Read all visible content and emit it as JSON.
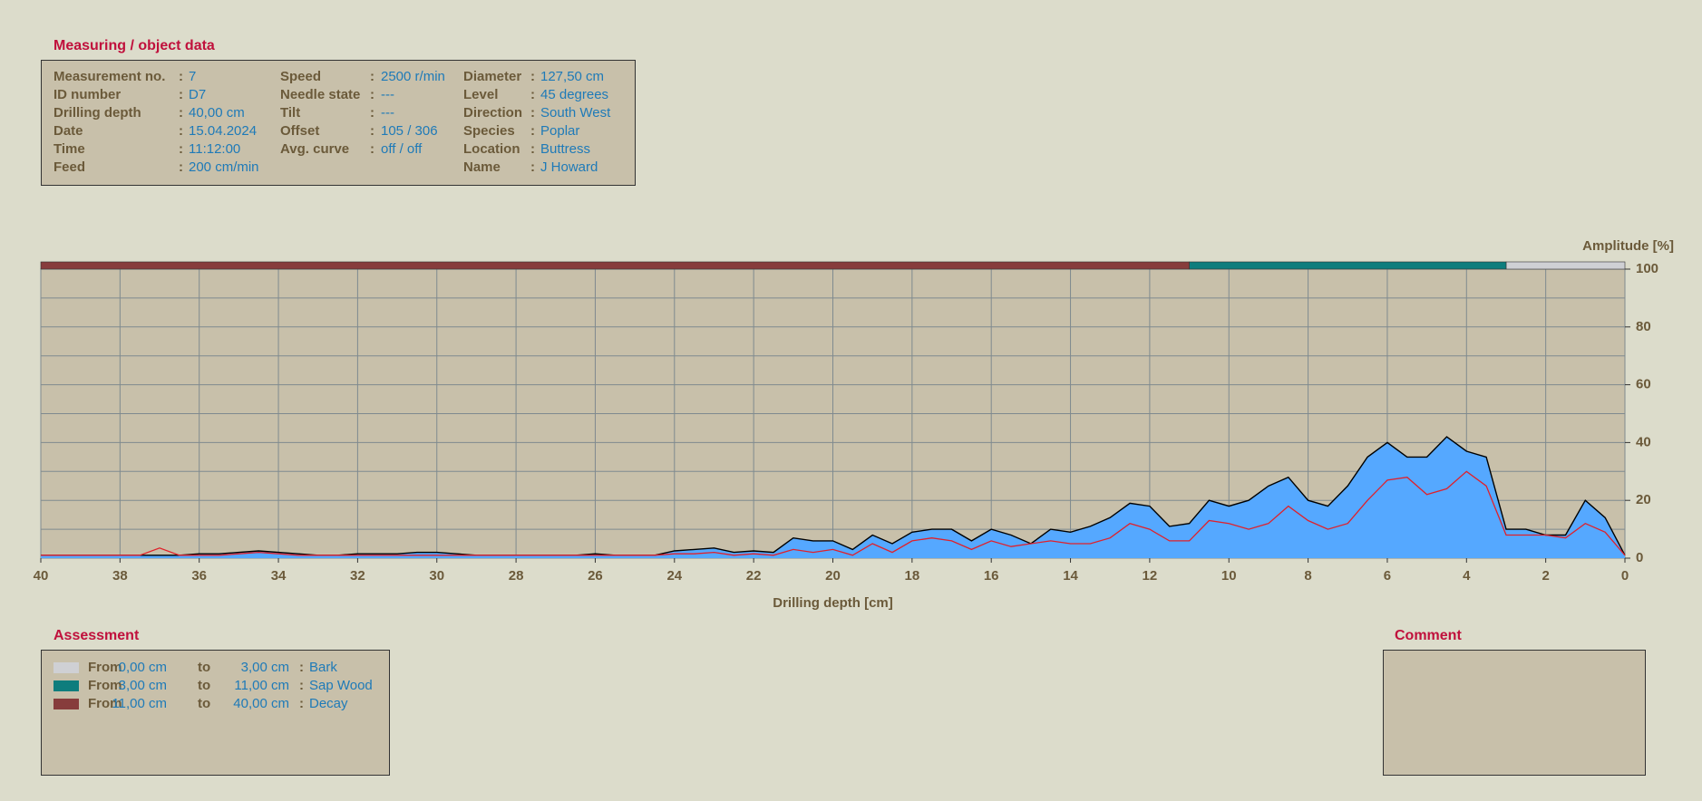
{
  "measuring": {
    "title": "Measuring / object data",
    "separator": ":",
    "columns": [
      [
        {
          "label": "Measurement no.",
          "value": "7"
        },
        {
          "label": "ID number",
          "value": "D7"
        },
        {
          "label": "Drilling depth",
          "value": "40,00 cm"
        },
        {
          "label": "Date",
          "value": "15.04.2024"
        },
        {
          "label": "Time",
          "value": "11:12:00"
        },
        {
          "label": "Feed",
          "value": "200 cm/min"
        }
      ],
      [
        {
          "label": "Speed",
          "value": "2500 r/min"
        },
        {
          "label": "Needle state",
          "value": "---"
        },
        {
          "label": "Tilt",
          "value": "---"
        },
        {
          "label": "Offset",
          "value": "105 / 306"
        },
        {
          "label": "Avg. curve",
          "value": "off / off"
        }
      ],
      [
        {
          "label": "Diameter",
          "value": "127,50 cm"
        },
        {
          "label": "Level",
          "value": "45 degrees"
        },
        {
          "label": "Direction",
          "value": "South West"
        },
        {
          "label": "Species",
          "value": "Poplar"
        },
        {
          "label": "Location",
          "value": "Buttress"
        },
        {
          "label": "Name",
          "value": "J Howard"
        }
      ]
    ]
  },
  "chart_data": {
    "type": "area",
    "ylabel": "Amplitude [%]",
    "xlabel": "Drilling depth [cm]",
    "xlim": [
      40,
      0
    ],
    "xticks": [
      40,
      38,
      36,
      34,
      32,
      30,
      28,
      26,
      24,
      22,
      20,
      18,
      16,
      14,
      12,
      10,
      8,
      6,
      4,
      2,
      0
    ],
    "ylim": [
      0,
      100
    ],
    "yticks": [
      0,
      20,
      40,
      60,
      80,
      100
    ],
    "ygrid": [
      0,
      10,
      20,
      30,
      40,
      50,
      60,
      70,
      80,
      90,
      100
    ],
    "grid": true,
    "x": [
      40,
      39.5,
      39,
      38.5,
      38,
      37.5,
      37,
      36.5,
      36,
      35.5,
      35,
      34.5,
      34,
      33.5,
      33,
      32.5,
      32,
      31.5,
      31,
      30.5,
      30,
      29.5,
      29,
      28.5,
      28,
      27.5,
      27,
      26.5,
      26,
      25.5,
      25,
      24.5,
      24,
      23.5,
      23,
      22.5,
      22,
      21.5,
      21,
      20.5,
      20,
      19.5,
      19,
      18.5,
      18,
      17.5,
      17,
      16.5,
      16,
      15.5,
      15,
      14.5,
      14,
      13.5,
      13,
      12.5,
      12,
      11.5,
      11,
      10.5,
      10,
      9.5,
      9,
      8.5,
      8,
      7.5,
      7,
      6.5,
      6,
      5.5,
      5,
      4.5,
      4,
      3.5,
      3,
      2.5,
      2,
      1.5,
      1,
      0.5,
      0
    ],
    "series": [
      {
        "color": "#55a8ff",
        "line": "#000000",
        "fill": true,
        "values": [
          1,
          1,
          1,
          1,
          1,
          1,
          1,
          1,
          1.5,
          1.5,
          2,
          2.5,
          2,
          1.5,
          1,
          1,
          1.5,
          1.5,
          1.5,
          2,
          2,
          1.5,
          1,
          1,
          1,
          1,
          1,
          1,
          1.5,
          1,
          1,
          1,
          2.5,
          3,
          3.5,
          2,
          2.5,
          2,
          7,
          6,
          6,
          3,
          8,
          5,
          9,
          10,
          10,
          6,
          10,
          8,
          5,
          10,
          9,
          11,
          14,
          19,
          18,
          11,
          12,
          20,
          18,
          20,
          25,
          28,
          20,
          18,
          25,
          35,
          40,
          35,
          35,
          42,
          37,
          35,
          10,
          10,
          8,
          8,
          20,
          14,
          1
        ]
      },
      {
        "color": "#e0202a",
        "fill": false,
        "values": [
          1,
          1,
          1,
          1,
          1,
          1,
          3.5,
          1,
          1,
          1,
          1.5,
          2,
          1.5,
          1,
          1,
          1,
          1,
          1,
          1,
          1,
          1,
          1,
          1,
          1,
          1,
          1,
          1,
          1,
          1,
          1,
          1,
          1,
          1.5,
          1.5,
          2,
          1,
          1.5,
          1,
          3,
          2,
          3,
          1,
          5,
          2,
          6,
          7,
          6,
          3,
          6,
          4,
          5,
          6,
          5,
          5,
          7,
          12,
          10,
          6,
          6,
          13,
          12,
          10,
          12,
          18,
          13,
          10,
          12,
          20,
          27,
          28,
          22,
          24,
          30,
          25,
          8,
          8,
          8,
          7,
          12,
          9,
          1
        ]
      }
    ]
  },
  "assessment": {
    "title": "Assessment",
    "labels": {
      "from": "From",
      "to": "to"
    },
    "separator": ":",
    "rows": [
      {
        "color": "#cfd0d4",
        "from": {
          "value": 0,
          "label": "0,00 cm"
        },
        "to": {
          "value": 3,
          "label": "3,00 cm"
        },
        "name": "Bark"
      },
      {
        "color": "#0e7d7d",
        "from": {
          "value": 3,
          "label": "3,00 cm"
        },
        "to": {
          "value": 11,
          "label": "11,00 cm"
        },
        "name": "Sap Wood"
      },
      {
        "color": "#873c3c",
        "from": {
          "value": 11,
          "label": "11,00 cm"
        },
        "to": {
          "value": 40,
          "label": "40,00 cm"
        },
        "name": "Decay"
      }
    ]
  },
  "comment": {
    "title": "Comment"
  }
}
